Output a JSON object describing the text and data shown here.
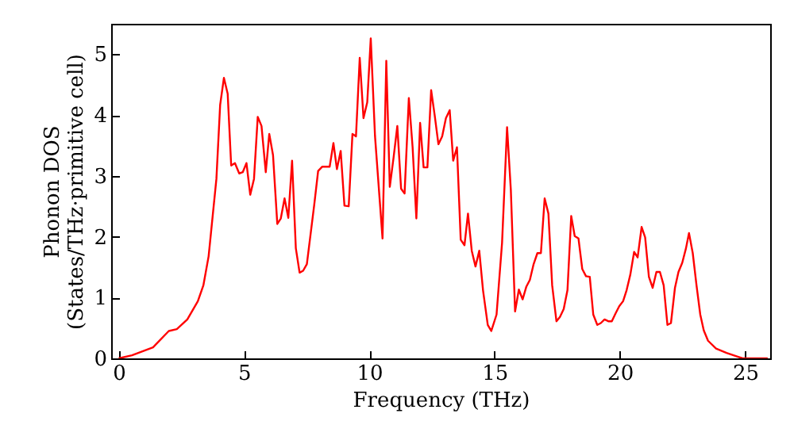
{
  "chart_data": {
    "type": "line",
    "xlabel": "Frequency (THz)",
    "ylabel": "Phonon DOS\n(States/THz·primitive cell)",
    "xlim": [
      -0.3,
      26
    ],
    "ylim": [
      0,
      5.5
    ],
    "xticks": [
      0,
      5,
      10,
      15,
      20,
      25
    ],
    "yticks": [
      0,
      1,
      2,
      3,
      4,
      5
    ],
    "grid": false,
    "marker": "none",
    "line_style": "solid",
    "series": [
      {
        "color": "#ff0000",
        "x": [
          0,
          0.53,
          1.37,
          2.0,
          2.32,
          2.74,
          3.16,
          3.38,
          3.59,
          3.9,
          4.05,
          4.2,
          4.35,
          4.49,
          4.64,
          4.81,
          4.95,
          5.1,
          5.25,
          5.4,
          5.55,
          5.7,
          5.87,
          6.01,
          6.16,
          6.33,
          6.47,
          6.62,
          6.77,
          6.92,
          7.07,
          7.22,
          7.36,
          7.51,
          7.8,
          7.96,
          8.12,
          8.42,
          8.57,
          8.71,
          8.86,
          9.01,
          9.18,
          9.33,
          9.47,
          9.62,
          9.77,
          9.92,
          10.06,
          10.23,
          10.53,
          10.68,
          10.82,
          10.97,
          11.12,
          11.27,
          11.41,
          11.58,
          11.73,
          11.88,
          12.03,
          12.17,
          12.32,
          12.47,
          12.61,
          12.76,
          12.91,
          13.06,
          13.21,
          13.35,
          13.5,
          13.65,
          13.8,
          13.94,
          14.09,
          14.24,
          14.39,
          14.54,
          14.73,
          14.87,
          15.08,
          15.3,
          15.5,
          15.65,
          15.82,
          15.97,
          16.12,
          16.27,
          16.41,
          16.56,
          16.71,
          16.85,
          17.0,
          17.15,
          17.3,
          17.47,
          17.61,
          17.76,
          17.91,
          18.06,
          18.2,
          18.35,
          18.5,
          18.65,
          18.8,
          18.94,
          19.1,
          19.24,
          19.39,
          19.54,
          19.68,
          19.83,
          19.98,
          20.13,
          20.27,
          20.42,
          20.57,
          20.71,
          20.87,
          21.01,
          21.16,
          21.31,
          21.46,
          21.6,
          21.75,
          21.9,
          22.04,
          22.2,
          22.34,
          22.49,
          22.64,
          22.76,
          22.91,
          23.06,
          23.21,
          23.35,
          23.52,
          23.84,
          24.26,
          24.68,
          24.9,
          25.9
        ],
        "values": [
          0,
          0.05,
          0.18,
          0.45,
          0.48,
          0.64,
          0.94,
          1.2,
          1.68,
          2.95,
          4.17,
          4.61,
          4.35,
          3.17,
          3.21,
          3.04,
          3.06,
          3.21,
          2.69,
          2.95,
          3.97,
          3.82,
          3.06,
          3.69,
          3.34,
          2.21,
          2.3,
          2.63,
          2.31,
          3.25,
          1.81,
          1.41,
          1.44,
          1.55,
          2.51,
          3.08,
          3.15,
          3.15,
          3.54,
          3.11,
          3.41,
          2.51,
          2.5,
          3.69,
          3.65,
          4.94,
          3.95,
          4.21,
          5.26,
          3.65,
          1.97,
          4.89,
          2.82,
          3.3,
          3.82,
          2.79,
          2.71,
          4.28,
          3.47,
          2.3,
          3.87,
          3.14,
          3.14,
          4.41,
          4.0,
          3.52,
          3.65,
          3.95,
          4.08,
          3.25,
          3.47,
          1.95,
          1.86,
          2.38,
          1.77,
          1.51,
          1.77,
          1.12,
          0.55,
          0.45,
          0.72,
          1.9,
          3.8,
          2.77,
          0.77,
          1.13,
          0.97,
          1.18,
          1.29,
          1.55,
          1.73,
          1.73,
          2.63,
          2.38,
          1.2,
          0.61,
          0.68,
          0.81,
          1.12,
          2.34,
          2.01,
          1.97,
          1.47,
          1.35,
          1.34,
          0.72,
          0.55,
          0.58,
          0.64,
          0.61,
          0.61,
          0.74,
          0.86,
          0.94,
          1.12,
          1.38,
          1.75,
          1.66,
          2.16,
          1.99,
          1.34,
          1.16,
          1.42,
          1.42,
          1.2,
          0.55,
          0.58,
          1.16,
          1.42,
          1.57,
          1.81,
          2.06,
          1.73,
          1.2,
          0.72,
          0.46,
          0.29,
          0.16,
          0.09,
          0.03,
          0,
          0
        ]
      }
    ]
  }
}
